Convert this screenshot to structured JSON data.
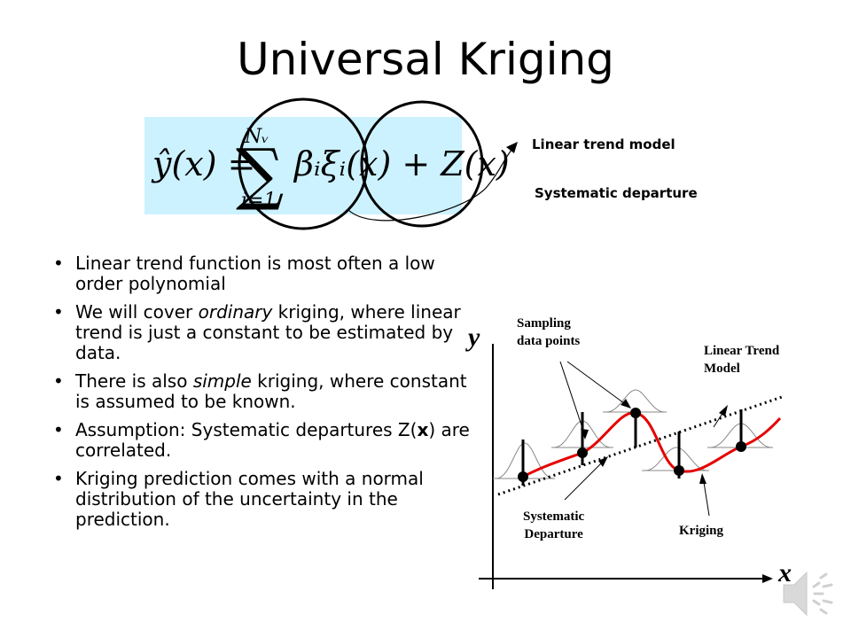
{
  "slide": {
    "title": "Universal Kriging",
    "equation": {
      "lhs": "ŷ(x) =",
      "sum_symbol": "∑",
      "upper_limit": "Nᵥ",
      "lower_limit": "i=1",
      "terms": "βᵢξᵢ(x) + Z(x)"
    },
    "annotations": {
      "linear_trend_model": "Linear trend model",
      "systematic_departure": "Systematic departure"
    },
    "bullets": [
      {
        "pre": "Linear trend function is most often a low order polynomial",
        "em": "",
        "post": ""
      },
      {
        "pre": "We will cover ",
        "em": "ordinary",
        "post": " kriging, where linear trend is just a constant to be estimated by data."
      },
      {
        "pre": "There is also ",
        "em": "simple",
        "post": " kriging, where constant is assumed to be known."
      },
      {
        "pre": "Assumption: Systematic departures Z(",
        "em": "x",
        "post": ") are correlated."
      },
      {
        "pre": "Kriging prediction comes with a normal distribution of the uncertainty in the prediction.",
        "em": "",
        "post": ""
      }
    ]
  },
  "figure": {
    "y_axis_label": "y",
    "x_axis_label": "x",
    "label_sampling": [
      "Sampling",
      "data points"
    ],
    "label_linear_trend": [
      "Linear Trend",
      "Model"
    ],
    "label_systematic": [
      "Systematic",
      "Departure"
    ],
    "label_kriging": "Kriging",
    "colors": {
      "kriging_curve": "#e60000",
      "trend_line": "#000000",
      "points": "#000000"
    }
  },
  "icons": {
    "speaker": "speaker-icon"
  }
}
